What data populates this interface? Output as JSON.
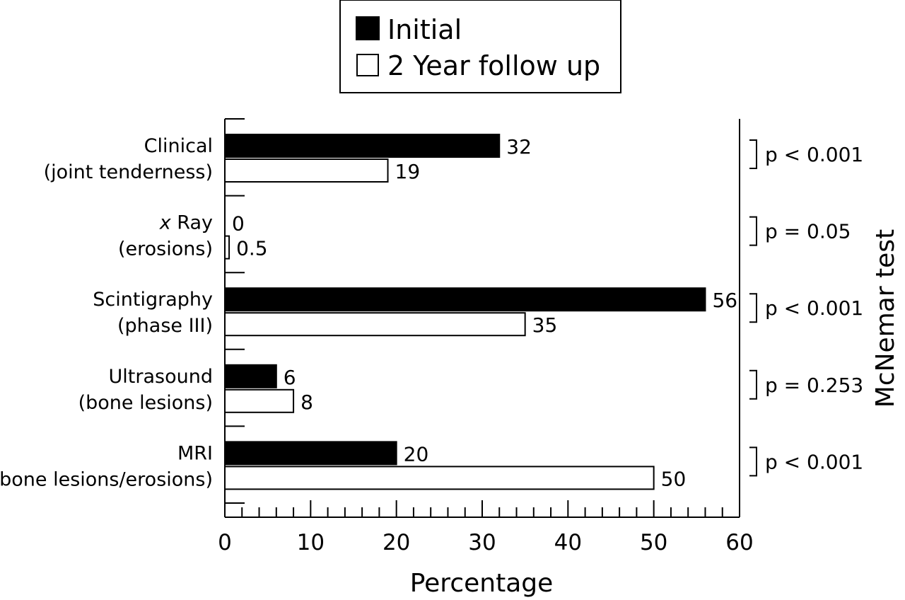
{
  "chart_data": {
    "type": "bar",
    "orientation": "horizontal",
    "categories": [
      {
        "line1": "Clinical",
        "line2": "(joint tenderness)"
      },
      {
        "line1_italic": "x",
        "line1": "Ray",
        "line2": "(erosions)"
      },
      {
        "line1": "Scintigraphy",
        "line2": "(phase III)"
      },
      {
        "line1": "Ultrasound",
        "line2": "(bone lesions)"
      },
      {
        "line1": "MRI",
        "line2": "(bone lesions/erosions)"
      }
    ],
    "series": [
      {
        "name": "Initial",
        "color": "#000000",
        "values": [
          32,
          0,
          56,
          6,
          20
        ],
        "labels": [
          "32",
          "0",
          "56",
          "6",
          "20"
        ]
      },
      {
        "name": "2 Year follow up",
        "color": "#ffffff",
        "values": [
          19,
          0.5,
          35,
          8,
          50
        ],
        "labels": [
          "19",
          "0.5",
          "35",
          "8",
          "50"
        ]
      }
    ],
    "xlabel": "Percentage",
    "xlim": [
      0,
      60
    ],
    "xticks": [
      "0",
      "10",
      "20",
      "30",
      "40",
      "50",
      "60"
    ],
    "minor_tick_step": 2,
    "right_axis_label": "McNemar test",
    "p_values": [
      "p < 0.001",
      "p = 0.05",
      "p < 0.001",
      "p = 0.253",
      "p < 0.001"
    ],
    "legend_position": "top-center",
    "grid": false
  }
}
